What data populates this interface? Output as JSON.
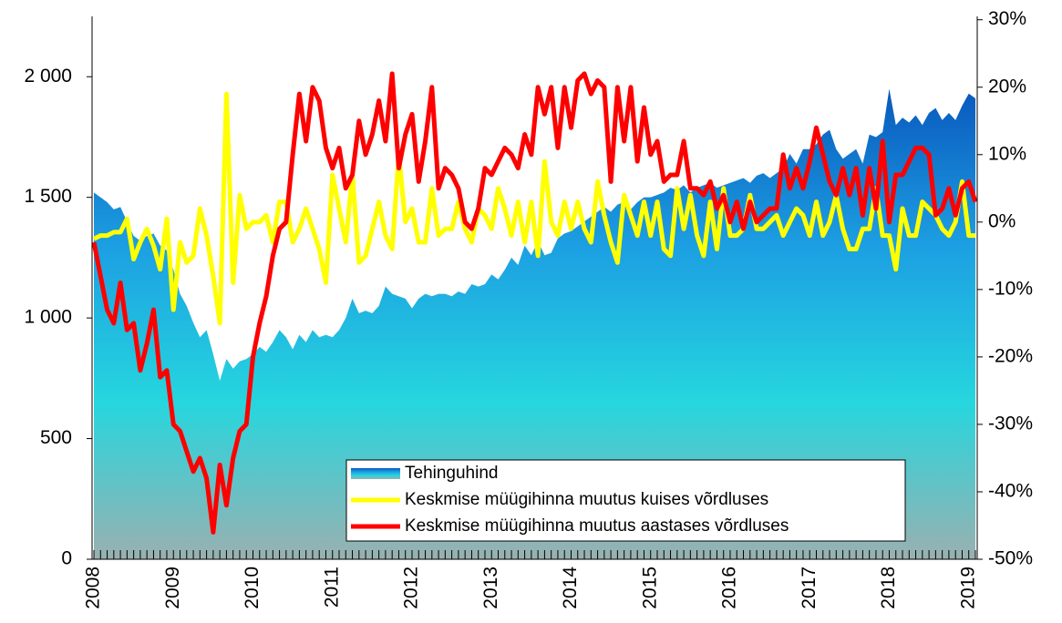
{
  "chart_data": {
    "type": "combo",
    "categories": [
      "2008",
      null,
      null,
      null,
      null,
      null,
      null,
      null,
      null,
      null,
      null,
      null,
      "2009",
      null,
      null,
      null,
      null,
      null,
      null,
      null,
      null,
      null,
      null,
      null,
      "2010",
      null,
      null,
      null,
      null,
      null,
      null,
      null,
      null,
      null,
      null,
      null,
      "2011",
      null,
      null,
      null,
      null,
      null,
      null,
      null,
      null,
      null,
      null,
      null,
      "2012",
      null,
      null,
      null,
      null,
      null,
      null,
      null,
      null,
      null,
      null,
      null,
      "2013",
      null,
      null,
      null,
      null,
      null,
      null,
      null,
      null,
      null,
      null,
      null,
      "2014",
      null,
      null,
      null,
      null,
      null,
      null,
      null,
      null,
      null,
      null,
      null,
      "2015",
      null,
      null,
      null,
      null,
      null,
      null,
      null,
      null,
      null,
      null,
      null,
      "2016",
      null,
      null,
      null,
      null,
      null,
      null,
      null,
      null,
      null,
      null,
      null,
      "2017",
      null,
      null,
      null,
      null,
      null,
      null,
      null,
      null,
      null,
      null,
      null,
      "2018",
      null,
      null,
      null,
      null,
      null,
      null,
      null,
      null,
      null,
      null,
      null,
      "2019",
      null
    ],
    "series": [
      {
        "name": "Tehinguhind",
        "type": "area",
        "gradient": [
          "#0a58bd",
          "#1c9fe2",
          "#26d6de",
          "#9ab0b0"
        ],
        "values": [
          1520,
          1500,
          1480,
          1450,
          1460,
          1400,
          1340,
          1320,
          1340,
          1350,
          1300,
          1280,
          1200,
          1100,
          1050,
          980,
          920,
          950,
          850,
          740,
          830,
          790,
          820,
          830,
          850,
          880,
          860,
          900,
          950,
          920,
          870,
          930,
          900,
          950,
          920,
          930,
          920,
          950,
          1000,
          1080,
          1020,
          1030,
          1020,
          1050,
          1130,
          1100,
          1090,
          1080,
          1040,
          1080,
          1100,
          1090,
          1100,
          1100,
          1090,
          1110,
          1100,
          1140,
          1130,
          1140,
          1180,
          1160,
          1200,
          1250,
          1220,
          1300,
          1260,
          1320,
          1260,
          1270,
          1330,
          1350,
          1360,
          1380,
          1400,
          1420,
          1440,
          1460,
          1440,
          1470,
          1480,
          1450,
          1480,
          1500,
          1500,
          1510,
          1520,
          1540,
          1530,
          1550,
          1520,
          1540,
          1550,
          1560,
          1540,
          1550,
          1560,
          1570,
          1580,
          1560,
          1590,
          1600,
          1580,
          1600,
          1620,
          1680,
          1640,
          1700,
          1700,
          1720,
          1760,
          1780,
          1700,
          1660,
          1680,
          1700,
          1640,
          1760,
          1750,
          1770,
          1950,
          1800,
          1830,
          1810,
          1840,
          1800,
          1850,
          1870,
          1820,
          1850,
          1820,
          1880,
          1930,
          1910
        ]
      },
      {
        "name": "Keskmise müügihinna muutus kuises võrdluses",
        "type": "line",
        "axis": "y2",
        "color": "#ffff00",
        "values": [
          -2.5,
          -2,
          -2,
          -1.5,
          -1.5,
          0.5,
          -5.5,
          -3,
          -1,
          -3.5,
          -7,
          0.5,
          -13,
          -3,
          -6,
          -5,
          2,
          -2,
          -8,
          -15,
          19,
          -9,
          4,
          -1,
          0,
          0,
          1,
          -3,
          3,
          3,
          -3,
          -1,
          2,
          -1,
          -4,
          -9,
          7,
          2,
          -3,
          7,
          -6,
          -5,
          -1,
          3,
          -2,
          -4,
          10,
          0,
          2,
          -3,
          -3,
          5,
          -2,
          -1,
          -1,
          3,
          -1,
          -3,
          2,
          1,
          -1,
          5,
          2,
          -2,
          3,
          -3,
          3,
          -5,
          9,
          0,
          -2,
          3,
          -1,
          3,
          -1,
          -3,
          6,
          1,
          -3,
          -6,
          4,
          1,
          -2,
          3,
          -2,
          3,
          -4,
          -5,
          5,
          -1,
          4,
          -2,
          -5,
          3,
          -4,
          5,
          -2,
          -2,
          -1,
          4,
          -1,
          -1,
          0,
          1,
          -2,
          0,
          2,
          1,
          -2,
          3,
          -2,
          0,
          4,
          -1,
          -4,
          -4,
          -1,
          -1,
          5,
          -2,
          -2,
          -7,
          2,
          -2,
          -2,
          3,
          2,
          1,
          -1,
          -2,
          0,
          6,
          -2,
          -2
        ]
      },
      {
        "name": "Keskmise müügihinna muutus aastases võrdluses",
        "type": "line",
        "axis": "y2",
        "color": "#ff0000",
        "values": [
          -3,
          -8,
          -13,
          -15,
          -9,
          -16,
          -15,
          -22,
          -18,
          -13,
          -23,
          -22,
          -30,
          -31,
          -34,
          -37,
          -35,
          -38,
          -46,
          -36,
          -42,
          -35,
          -31,
          -30,
          -20,
          -15,
          -11,
          -5,
          -1,
          0,
          10,
          19,
          12,
          20,
          18,
          11,
          8,
          11,
          5,
          7,
          15,
          10,
          13,
          18,
          12,
          22,
          8,
          13,
          16,
          6,
          12,
          20,
          5,
          8,
          7,
          5,
          0,
          -1,
          2,
          8,
          7,
          9,
          11,
          10,
          8,
          13,
          10,
          20,
          16,
          20,
          11,
          20,
          14,
          21,
          22,
          19,
          21,
          20,
          6,
          20,
          12,
          20,
          9,
          17,
          10,
          12,
          6,
          7,
          7,
          12,
          5,
          5,
          4,
          6,
          2,
          4,
          0,
          3,
          -1,
          3,
          0,
          1,
          2,
          2,
          10,
          5,
          8,
          5,
          9,
          14,
          10,
          6,
          4,
          8,
          4,
          8,
          1,
          8,
          2,
          12,
          0,
          7,
          7,
          9,
          11,
          11,
          10,
          1,
          2,
          5,
          1,
          5,
          6,
          3
        ]
      }
    ],
    "ylim": [
      0,
      2250
    ],
    "yticks": [
      0,
      500,
      {
        "value": 1000,
        "label": "1 000"
      },
      {
        "value": 1500,
        "label": "1 500"
      },
      {
        "value": 2000,
        "label": "2 000"
      }
    ],
    "y2lim": [
      -50,
      30.5
    ],
    "y2ticks": [
      {
        "value": -50,
        "label": "-50%"
      },
      {
        "value": -40,
        "label": "-40%"
      },
      {
        "value": -30,
        "label": "-30%"
      },
      {
        "value": -20,
        "label": "-20%"
      },
      {
        "value": -10,
        "label": "-10%"
      },
      {
        "value": 0,
        "label": "0%"
      },
      {
        "value": 10,
        "label": "10%"
      },
      {
        "value": 20,
        "label": "20%"
      },
      {
        "value": 30,
        "label": "30%"
      }
    ],
    "legend": "bottom-right"
  }
}
